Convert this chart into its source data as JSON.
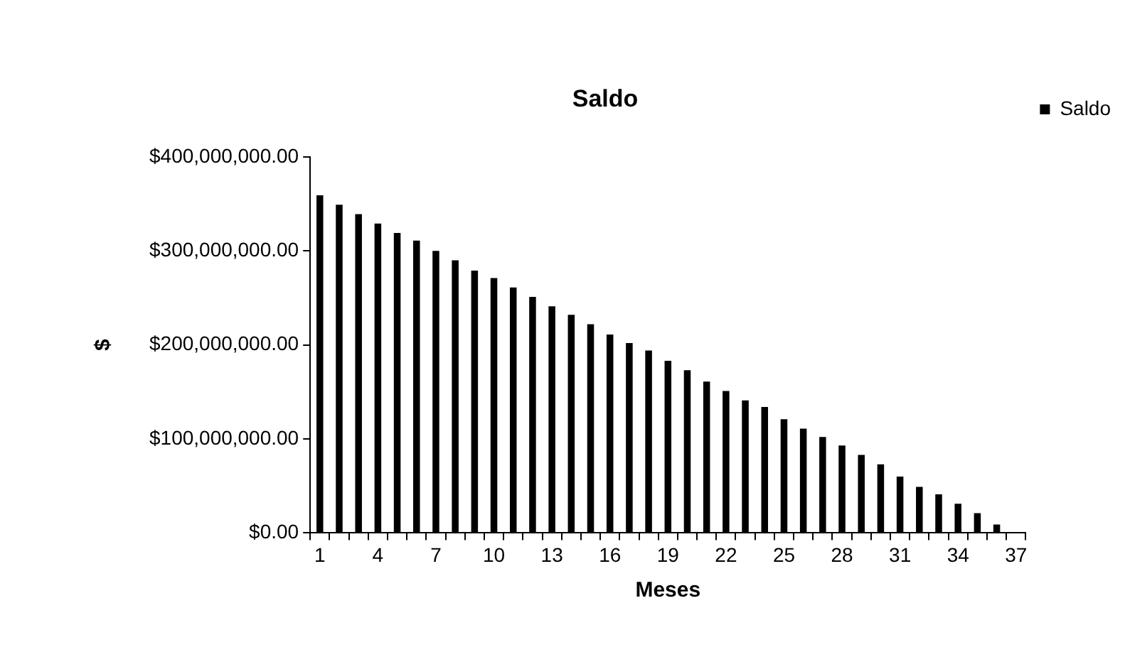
{
  "chart_data": {
    "type": "bar",
    "title": "Saldo",
    "xlabel": "Meses",
    "ylabel": "$",
    "categories": [
      "1",
      null,
      null,
      "4",
      null,
      null,
      "7",
      null,
      null,
      "10",
      null,
      null,
      "13",
      null,
      null,
      "16",
      null,
      null,
      "19",
      null,
      null,
      "22",
      null,
      null,
      "25",
      null,
      null,
      "28",
      null,
      null,
      "31",
      null,
      null,
      "34",
      null,
      null,
      "37"
    ],
    "series": [
      {
        "name": "Saldo",
        "color": "#000000",
        "values": [
          359000000,
          349000000,
          339000000,
          329000000,
          319000000,
          311000000,
          300000000,
          290000000,
          279000000,
          271000000,
          261000000,
          251000000,
          241000000,
          232000000,
          222000000,
          211000000,
          202000000,
          194000000,
          183000000,
          173000000,
          161000000,
          151000000,
          141000000,
          134000000,
          121000000,
          111000000,
          102000000,
          93000000,
          83000000,
          73000000,
          60000000,
          49000000,
          41000000,
          31000000,
          21000000,
          9000000,
          0
        ]
      }
    ],
    "ylim": [
      0,
      400000000
    ],
    "yticks": [
      {
        "value": 0,
        "label": "$0.00"
      },
      {
        "value": 100000000,
        "label": "$100,000,000.00"
      },
      {
        "value": 200000000,
        "label": "$200,000,000.00"
      },
      {
        "value": 300000000,
        "label": "$300,000,000.00"
      },
      {
        "value": 400000000,
        "label": "$400,000,000.00"
      }
    ],
    "grid": false,
    "legend": "top right"
  }
}
